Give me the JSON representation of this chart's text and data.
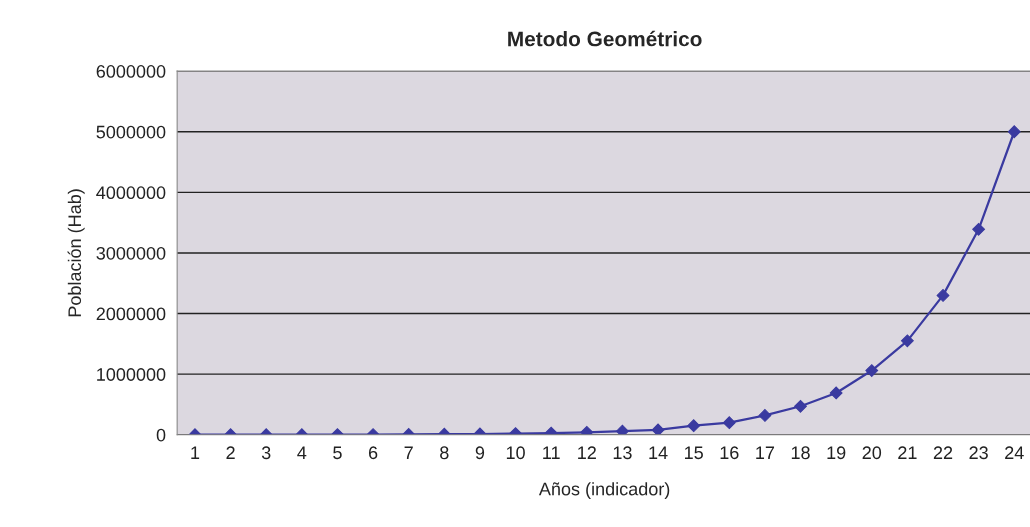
{
  "chart_data": {
    "type": "line",
    "title": "Metodo Geométrico",
    "xlabel": "Años (indicador)",
    "ylabel": "Población (Hab)",
    "categories": [
      "1",
      "2",
      "3",
      "4",
      "5",
      "6",
      "7",
      "8",
      "9",
      "10",
      "11",
      "12",
      "13",
      "14",
      "15",
      "16",
      "17",
      "18",
      "19",
      "20",
      "21",
      "22",
      "23",
      "24"
    ],
    "series": [
      {
        "color": "#3a3aa0",
        "values": [
          700,
          1000,
          1400,
          2000,
          3000,
          4000,
          6000,
          9000,
          13000,
          19000,
          28000,
          40000,
          60000,
          80000,
          150000,
          200000,
          320000,
          470000,
          690000,
          1060000,
          1550000,
          2300000,
          3390000,
          5000000
        ]
      }
    ],
    "ylim": [
      0,
      6000000
    ],
    "yticks": [
      0,
      1000000,
      2000000,
      3000000,
      4000000,
      5000000,
      6000000
    ],
    "grid": "y",
    "marker": "diamond",
    "line_style": "solid"
  }
}
